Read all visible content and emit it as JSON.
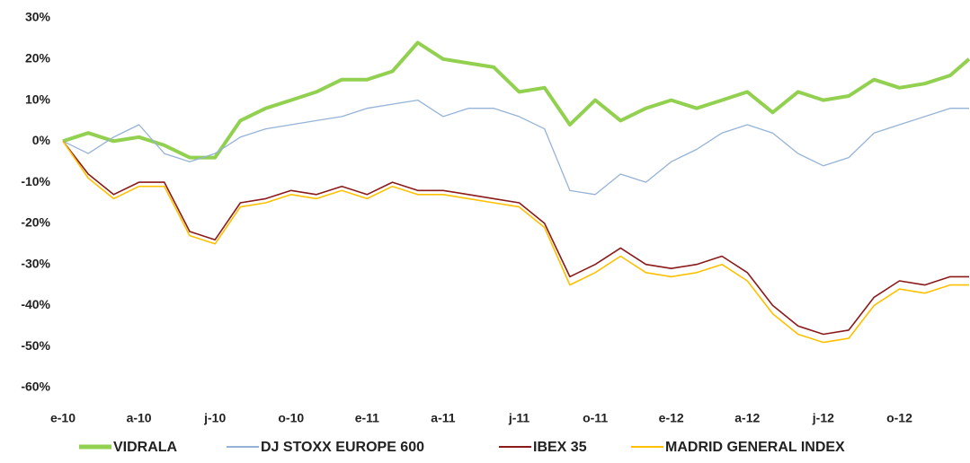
{
  "chart_data": {
    "type": "line",
    "x": [
      0,
      1,
      2,
      3,
      4,
      5,
      6,
      7,
      8,
      9,
      10,
      11,
      12,
      13,
      14,
      15,
      16,
      17,
      18,
      19,
      20,
      21,
      22,
      23,
      24,
      25,
      26,
      27,
      28,
      29,
      30,
      31,
      32,
      33,
      34,
      35,
      35.75
    ],
    "xlim": [
      0,
      35.75
    ],
    "xticks": [
      {
        "value": 0,
        "label": "e-10"
      },
      {
        "value": 3,
        "label": "a-10"
      },
      {
        "value": 6,
        "label": "j-10"
      },
      {
        "value": 9,
        "label": "o-10"
      },
      {
        "value": 12,
        "label": "e-11"
      },
      {
        "value": 15,
        "label": "a-11"
      },
      {
        "value": 18,
        "label": "j-11"
      },
      {
        "value": 21,
        "label": "o-11"
      },
      {
        "value": 24,
        "label": "e-12"
      },
      {
        "value": 27,
        "label": "a-12"
      },
      {
        "value": 30,
        "label": "j-12"
      },
      {
        "value": 33,
        "label": "o-12"
      }
    ],
    "ylim": [
      -60,
      30
    ],
    "yticks": [
      {
        "value": 30,
        "label": "30%"
      },
      {
        "value": 20,
        "label": "20%"
      },
      {
        "value": 10,
        "label": "10%"
      },
      {
        "value": 0,
        "label": "0%"
      },
      {
        "value": -10,
        "label": "-10%"
      },
      {
        "value": -20,
        "label": "-20%"
      },
      {
        "value": -30,
        "label": "-30%"
      },
      {
        "value": -40,
        "label": "-40%"
      },
      {
        "value": -50,
        "label": "-50%"
      },
      {
        "value": -60,
        "label": "-60%"
      }
    ],
    "series": [
      {
        "name": "VIDRALA",
        "color": "#92d050",
        "values": [
          0,
          2,
          0,
          1,
          -1,
          -4,
          -4,
          5,
          8,
          10,
          12,
          15,
          15,
          17,
          24,
          20,
          19,
          18,
          12,
          13,
          4,
          10,
          5,
          8,
          10,
          8,
          10,
          12,
          7,
          12,
          10,
          11,
          15,
          13,
          14,
          16,
          20
        ]
      },
      {
        "name": "DJ STOXX EUROPE 600",
        "color": "#95b3d7",
        "values": [
          0,
          -3,
          1,
          4,
          -3,
          -5,
          -3,
          1,
          3,
          4,
          5,
          6,
          8,
          9,
          10,
          6,
          8,
          8,
          6,
          3,
          -12,
          -13,
          -8,
          -10,
          -5,
          -2,
          2,
          4,
          2,
          -3,
          -6,
          -4,
          2,
          4,
          6,
          8,
          8
        ]
      },
      {
        "name": "IBEX 35",
        "color": "#8b1a1a",
        "values": [
          0,
          -8,
          -13,
          -10,
          -10,
          -22,
          -24,
          -15,
          -14,
          -12,
          -13,
          -11,
          -13,
          -10,
          -12,
          -12,
          -13,
          -14,
          -15,
          -20,
          -33,
          -30,
          -26,
          -30,
          -31,
          -30,
          -28,
          -32,
          -40,
          -45,
          -47,
          -46,
          -38,
          -34,
          -35,
          -33,
          -33
        ]
      },
      {
        "name": "MADRID GENERAL INDEX",
        "color": "#ffc000",
        "values": [
          0,
          -9,
          -14,
          -11,
          -11,
          -23,
          -25,
          -16,
          -15,
          -13,
          -14,
          -12,
          -14,
          -11,
          -13,
          -13,
          -14,
          -15,
          -16,
          -21,
          -35,
          -32,
          -28,
          -32,
          -33,
          -32,
          -30,
          -34,
          -42,
          -47,
          -49,
          -48,
          -40,
          -36,
          -37,
          -35,
          -35
        ]
      }
    ]
  }
}
